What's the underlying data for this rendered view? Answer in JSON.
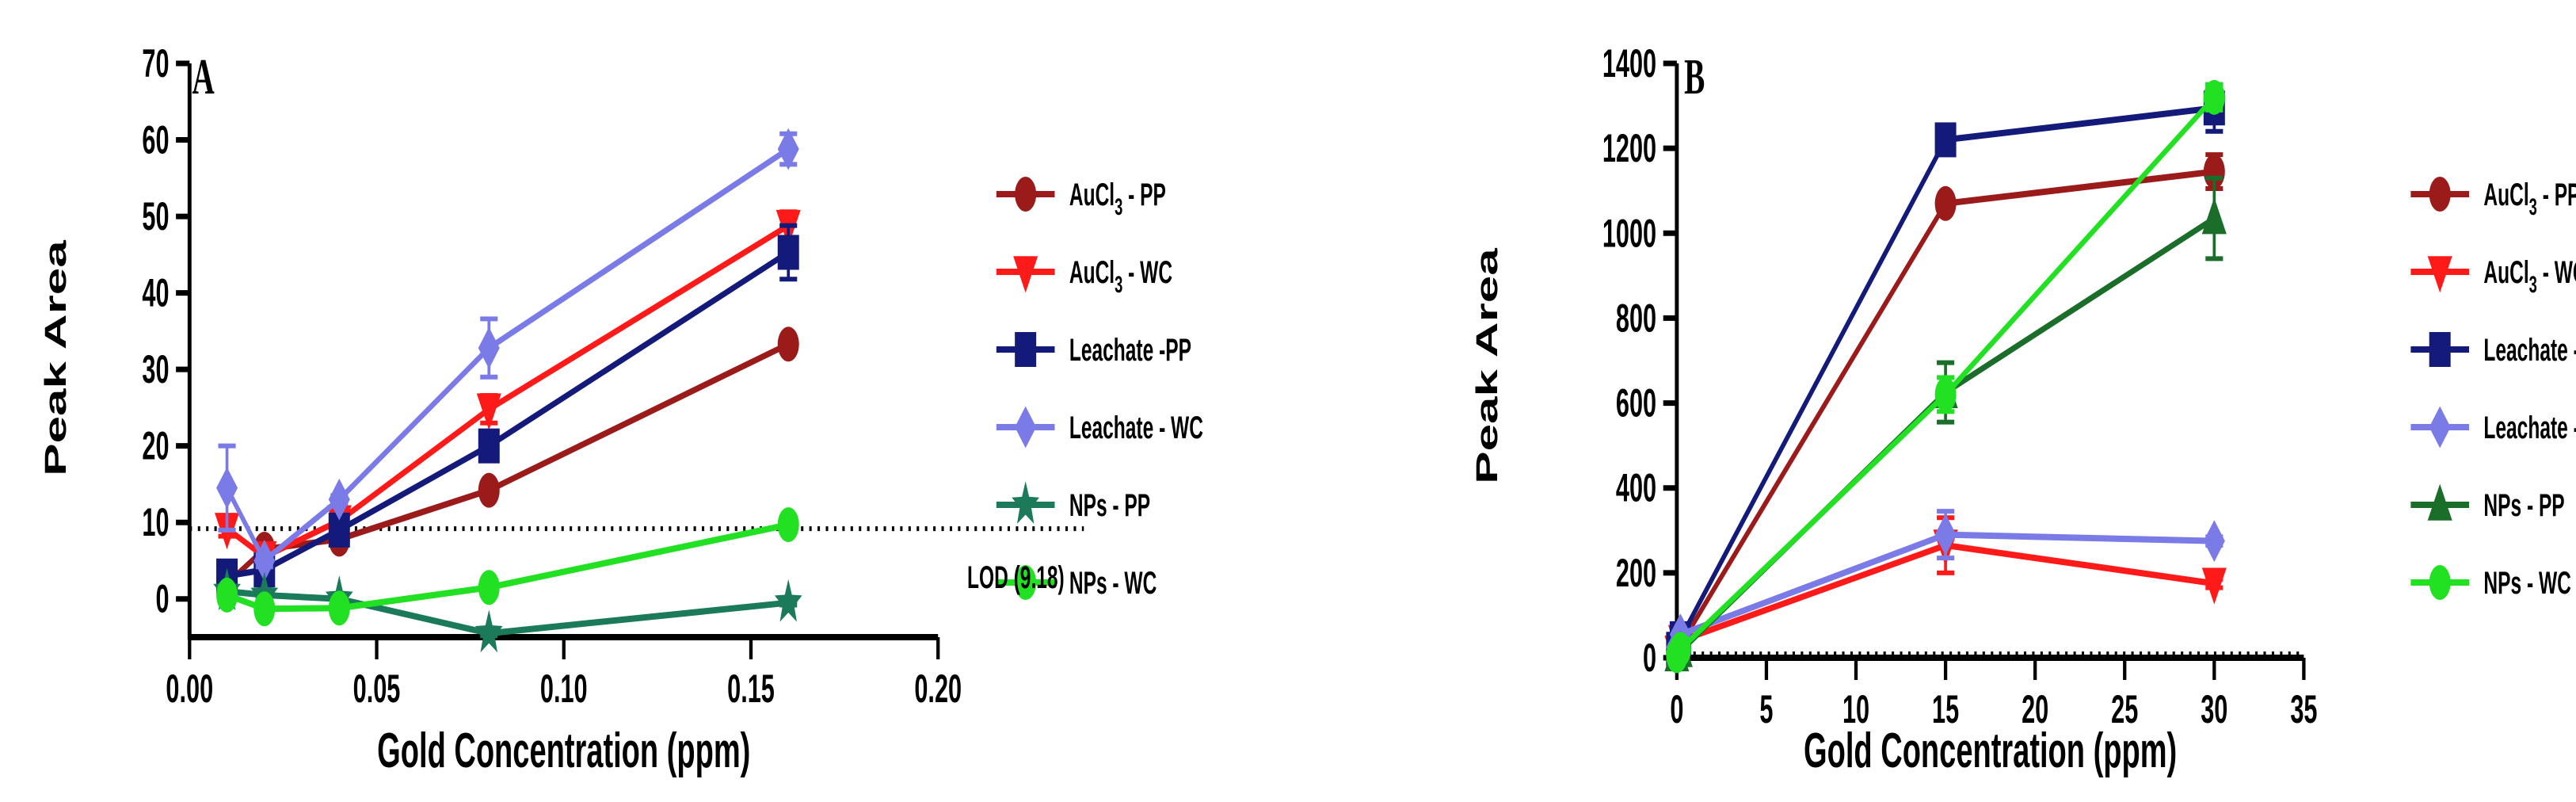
{
  "chart_data": [
    {
      "panel": "A",
      "type": "line",
      "title": "",
      "xlabel": "Gold Concentration (ppm)",
      "ylabel": "Peak Area",
      "xlim": [
        0.0,
        0.2
      ],
      "ylim": [
        -5,
        70
      ],
      "xticks": [
        "0.00",
        "0.05",
        "0.10",
        "0.15",
        "0.20"
      ],
      "yticks": [
        "0",
        "10",
        "20",
        "30",
        "40",
        "50",
        "60",
        "70"
      ],
      "xtick_values": [
        0,
        0.05,
        0.1,
        0.15,
        0.2
      ],
      "ytick_values": [
        0,
        10,
        20,
        30,
        40,
        50,
        60,
        70
      ],
      "reference_line": {
        "value": 9.18,
        "label": "LOD (9.18)",
        "style": "dotted"
      },
      "series": [
        {
          "name_main": "AuCl",
          "name_sub": "3",
          "name_rest": " - PP",
          "color": "#9B1B1B",
          "marker": "circle",
          "x": [
            0.01,
            0.02,
            0.04,
            0.08,
            0.16
          ],
          "y": [
            2,
            6.5,
            7.8,
            14.2,
            33.3
          ],
          "err": [
            0.5,
            1,
            0.5,
            0.5,
            0.5
          ]
        },
        {
          "name_main": "AuCl",
          "name_sub": "3",
          "name_rest": " - WC",
          "color": "#FF1A1A",
          "marker": "triangle-down",
          "x": [
            0.01,
            0.02,
            0.04,
            0.08,
            0.16
          ],
          "y": [
            9.2,
            5.5,
            10.2,
            24.8,
            48.8
          ],
          "err": [
            1,
            1,
            0.8,
            1.8,
            1.8
          ]
        },
        {
          "name_main": "Leachate -PP",
          "name_sub": "",
          "name_rest": "",
          "color": "#131A7A",
          "marker": "square",
          "x": [
            0.01,
            0.02,
            0.04,
            0.08,
            0.16
          ],
          "y": [
            3,
            3.8,
            9,
            20,
            45.3
          ],
          "err": [
            0.5,
            1,
            0.8,
            0.8,
            3.5
          ]
        },
        {
          "name_main": "Leachate - WC",
          "name_sub": "",
          "name_rest": "",
          "color": "#7B7BE8",
          "marker": "diamond",
          "x": [
            0.01,
            0.02,
            0.04,
            0.08,
            0.16
          ],
          "y": [
            14.5,
            5,
            13,
            32.8,
            58.8
          ],
          "err": [
            5.5,
            0.8,
            0.5,
            3.8,
            2
          ]
        },
        {
          "name_main": "NPs - PP",
          "name_sub": "",
          "name_rest": "",
          "color": "#1A7A5A",
          "marker": "star",
          "x": [
            0.01,
            0.02,
            0.04,
            0.08,
            0.16
          ],
          "y": [
            1,
            0.5,
            0,
            -4.5,
            -0.5
          ],
          "err": [
            0.3,
            0.3,
            0.3,
            0.3,
            0.3
          ]
        },
        {
          "name_main": "NPs - WC",
          "name_sub": "",
          "name_rest": "",
          "color": "#22E022",
          "marker": "circle",
          "x": [
            0.01,
            0.02,
            0.04,
            0.08,
            0.16
          ],
          "y": [
            0.5,
            -1.3,
            -1.2,
            1.5,
            9.7
          ],
          "err": [
            0.3,
            0.3,
            0.3,
            0.3,
            0.3
          ]
        }
      ]
    },
    {
      "panel": "B",
      "type": "line",
      "title": "",
      "xlabel": "Gold Concentration (ppm)",
      "ylabel": "Peak Area",
      "xlim": [
        0,
        35
      ],
      "ylim": [
        0,
        1400
      ],
      "xticks": [
        "0",
        "5",
        "10",
        "15",
        "20",
        "25",
        "30",
        "35"
      ],
      "yticks": [
        "0",
        "200",
        "400",
        "600",
        "800",
        "1000",
        "1200",
        "1400"
      ],
      "xtick_values": [
        0,
        5,
        10,
        15,
        20,
        25,
        30,
        35
      ],
      "ytick_values": [
        0,
        200,
        400,
        600,
        800,
        1000,
        1200,
        1400
      ],
      "reference_line": {
        "value": 9.18,
        "label": "",
        "style": "dotted"
      },
      "series": [
        {
          "name_main": "AuCl",
          "name_sub": "3",
          "name_rest": " - PP",
          "color": "#9B1B1B",
          "marker": "circle",
          "x": [
            0,
            0.2,
            15,
            30
          ],
          "y": [
            10,
            30,
            1070,
            1145
          ],
          "err": [
            5,
            5,
            10,
            40
          ]
        },
        {
          "name_main": "AuCl",
          "name_sub": "3",
          "name_rest": " - WC",
          "color": "#FF1A1A",
          "marker": "triangle-down",
          "x": [
            0,
            0.2,
            15,
            30
          ],
          "y": [
            15,
            40,
            265,
            175
          ],
          "err": [
            5,
            5,
            65,
            10
          ]
        },
        {
          "name_main": "Leachate -PP",
          "name_sub": "",
          "name_rest": "",
          "color": "#131A7A",
          "marker": "square",
          "x": [
            0,
            0.2,
            15,
            30
          ],
          "y": [
            20,
            45,
            1220,
            1295
          ],
          "err": [
            5,
            5,
            35,
            55
          ]
        },
        {
          "name_main": "Leachate - WC",
          "name_sub": "",
          "name_rest": "",
          "color": "#7B7BE8",
          "marker": "diamond",
          "x": [
            0,
            0.2,
            15,
            30
          ],
          "y": [
            25,
            55,
            290,
            275
          ],
          "err": [
            5,
            5,
            55,
            10
          ]
        },
        {
          "name_main": "NPs - PP",
          "name_sub": "",
          "name_rest": "",
          "color": "#1A6E2A",
          "marker": "triangle-up",
          "x": [
            0,
            0.2,
            15,
            30
          ],
          "y": [
            5,
            15,
            625,
            1035
          ],
          "err": [
            5,
            5,
            70,
            95
          ]
        },
        {
          "name_main": "NPs - WC",
          "name_sub": "",
          "name_rest": "",
          "color": "#22E022",
          "marker": "circle",
          "x": [
            0,
            0.2,
            15,
            30
          ],
          "y": [
            5,
            20,
            620,
            1320
          ],
          "err": [
            5,
            5,
            40,
            30
          ]
        }
      ]
    }
  ]
}
